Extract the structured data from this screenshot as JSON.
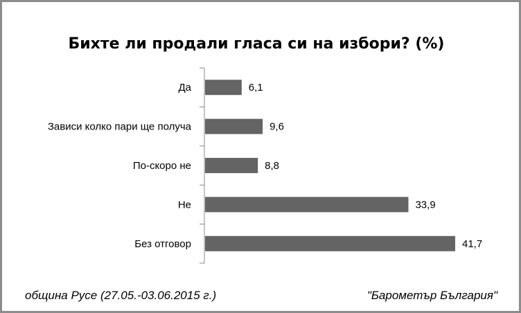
{
  "chart_data": {
    "type": "bar",
    "orientation": "horizontal",
    "title": "Бихте ли продали гласа си на избори? (%)",
    "categories": [
      "Да",
      "Зависи колко пари ще получа",
      "По-скоро не",
      "Не",
      "Без отговор"
    ],
    "values": [
      6.1,
      9.6,
      8.8,
      33.9,
      41.7
    ],
    "value_labels": [
      "6,1",
      "9,6",
      "8,8",
      "33,9",
      "41,7"
    ],
    "xlabel": "",
    "ylabel": "",
    "xlim": [
      0,
      45
    ],
    "grid": false,
    "bar_color": "#646464"
  },
  "footer": {
    "left": "община Русе (27.05.-03.06.2015 г.)",
    "right": "\"Барометър България\""
  }
}
